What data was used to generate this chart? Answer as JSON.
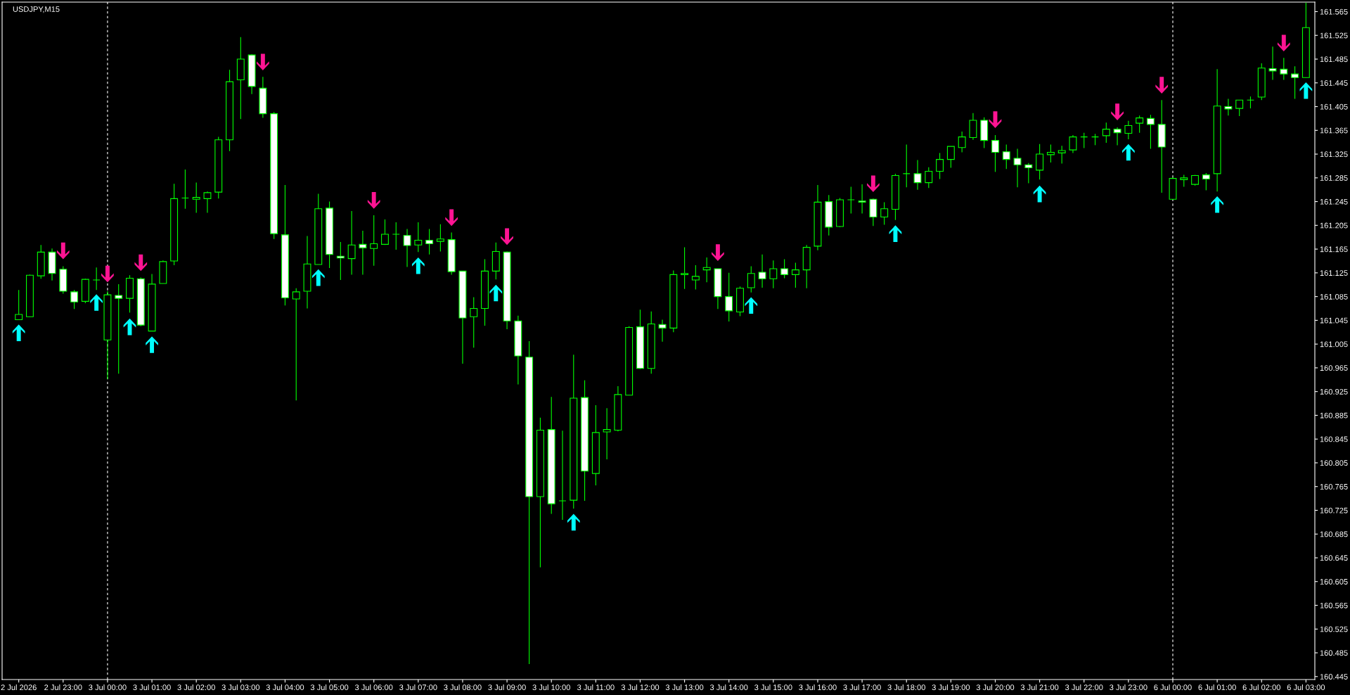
{
  "chart_data": {
    "type": "candlestick",
    "title": "USDJPY,M15",
    "categories": [
      "2 Jul 2026",
      null,
      null,
      null,
      "2 Jul 23:00",
      null,
      null,
      null,
      "3 Jul 00:00",
      null,
      null,
      null,
      "3 Jul 01:00",
      null,
      null,
      null,
      "3 Jul 02:00",
      null,
      null,
      null,
      "3 Jul 03:00",
      null,
      null,
      null,
      "3 Jul 04:00",
      null,
      null,
      null,
      "3 Jul 05:00",
      null,
      null,
      null,
      "3 Jul 06:00",
      null,
      null,
      null,
      "3 Jul 07:00",
      null,
      null,
      null,
      "3 Jul 08:00",
      null,
      null,
      null,
      "3 Jul 09:00",
      null,
      null,
      null,
      "3 Jul 10:00",
      null,
      null,
      null,
      "3 Jul 11:00",
      null,
      null,
      null,
      "3 Jul 12:00",
      null,
      null,
      null,
      "3 Jul 13:00",
      null,
      null,
      null,
      "3 Jul 14:00",
      null,
      null,
      null,
      "3 Jul 15:00",
      null,
      null,
      null,
      "3 Jul 16:00",
      null,
      null,
      null,
      "3 Jul 17:00",
      null,
      null,
      null,
      "3 Jul 18:00",
      null,
      null,
      null,
      "3 Jul 19:00",
      null,
      null,
      null,
      "3 Jul 20:00",
      null,
      null,
      null,
      "3 Jul 21:00",
      null,
      null,
      null,
      "3 Jul 22:00",
      null,
      null,
      null,
      "3 Jul 23:00",
      null,
      null,
      null,
      "6 Jul 00:00",
      null,
      null,
      null,
      "6 Jul 01:00",
      null,
      null,
      null,
      "6 Jul 02:00",
      null,
      null,
      null,
      "6 Jul 03:00"
    ],
    "ohlc": [
      [
        161.046,
        161.096,
        161.046,
        161.055
      ],
      [
        161.051,
        161.122,
        161.051,
        161.121
      ],
      [
        161.12,
        161.172,
        161.115,
        161.16
      ],
      [
        161.16,
        161.166,
        161.112,
        161.124
      ],
      [
        161.131,
        161.136,
        161.09,
        161.094
      ],
      [
        161.093,
        161.096,
        161.064,
        161.076
      ],
      [
        161.077,
        161.115,
        161.074,
        161.114
      ],
      [
        161.113,
        161.134,
        161.096,
        161.113
      ],
      [
        161.012,
        161.094,
        160.946,
        161.088
      ],
      [
        161.087,
        161.106,
        160.955,
        161.082
      ],
      [
        161.082,
        161.121,
        161.058,
        161.116
      ],
      [
        161.115,
        161.117,
        161.035,
        161.037
      ],
      [
        161.027,
        161.123,
        161.027,
        161.106
      ],
      [
        161.107,
        161.146,
        161.107,
        161.144
      ],
      [
        161.145,
        161.275,
        161.138,
        161.25
      ],
      [
        161.251,
        161.299,
        161.233,
        161.251
      ],
      [
        161.249,
        161.277,
        161.226,
        161.252
      ],
      [
        161.25,
        161.262,
        161.226,
        161.26
      ],
      [
        161.261,
        161.354,
        161.25,
        161.349
      ],
      [
        161.349,
        161.467,
        161.33,
        161.447
      ],
      [
        161.45,
        161.522,
        161.384,
        161.485
      ],
      [
        161.492,
        161.493,
        161.426,
        161.439
      ],
      [
        161.436,
        161.455,
        161.386,
        161.393
      ],
      [
        161.393,
        161.396,
        161.182,
        161.191
      ],
      [
        161.189,
        161.273,
        161.07,
        161.083
      ],
      [
        161.081,
        161.099,
        160.91,
        161.093
      ],
      [
        161.094,
        161.187,
        161.065,
        161.14
      ],
      [
        161.139,
        161.258,
        161.139,
        161.233
      ],
      [
        161.234,
        161.245,
        161.133,
        161.156
      ],
      [
        161.153,
        161.177,
        161.113,
        161.15
      ],
      [
        161.149,
        161.229,
        161.122,
        161.172
      ],
      [
        161.173,
        161.196,
        161.122,
        161.167
      ],
      [
        161.166,
        161.222,
        161.137,
        161.174
      ],
      [
        161.173,
        161.215,
        161.172,
        161.19
      ],
      [
        161.19,
        161.21,
        161.164,
        161.19
      ],
      [
        161.188,
        161.199,
        161.135,
        161.171
      ],
      [
        161.172,
        161.21,
        161.16,
        161.18
      ],
      [
        161.18,
        161.199,
        161.156,
        161.174
      ],
      [
        161.178,
        161.207,
        161.161,
        161.182
      ],
      [
        161.181,
        161.193,
        161.122,
        161.127
      ],
      [
        161.128,
        161.128,
        160.972,
        161.049
      ],
      [
        161.051,
        161.084,
        160.999,
        161.065
      ],
      [
        161.065,
        161.148,
        161.036,
        161.128
      ],
      [
        161.128,
        161.176,
        161.114,
        161.161
      ],
      [
        161.16,
        161.161,
        161.03,
        161.044
      ],
      [
        161.044,
        161.053,
        160.937,
        160.985
      ],
      [
        160.983,
        161.01,
        160.466,
        160.748
      ],
      [
        160.748,
        160.881,
        160.629,
        160.86
      ],
      [
        160.861,
        160.916,
        160.719,
        160.736
      ],
      [
        160.741,
        160.859,
        160.709,
        160.741
      ],
      [
        160.742,
        160.987,
        160.728,
        160.914
      ],
      [
        160.915,
        160.944,
        160.741,
        160.791
      ],
      [
        160.787,
        160.902,
        160.767,
        160.856
      ],
      [
        160.857,
        160.897,
        160.811,
        160.861
      ],
      [
        160.86,
        160.934,
        160.858,
        160.92
      ],
      [
        160.919,
        161.035,
        160.919,
        161.033
      ],
      [
        161.034,
        161.063,
        160.963,
        160.964
      ],
      [
        160.964,
        161.06,
        160.955,
        161.039
      ],
      [
        161.038,
        161.046,
        161.009,
        161.032
      ],
      [
        161.032,
        161.129,
        161.025,
        161.122
      ],
      [
        161.122,
        161.168,
        161.098,
        161.124
      ],
      [
        161.113,
        161.138,
        161.097,
        161.119
      ],
      [
        161.13,
        161.151,
        161.109,
        161.134
      ],
      [
        161.132,
        161.132,
        161.064,
        161.085
      ],
      [
        161.085,
        161.125,
        161.043,
        161.061
      ],
      [
        161.059,
        161.102,
        161.052,
        161.099
      ],
      [
        161.1,
        161.136,
        161.092,
        161.124
      ],
      [
        161.126,
        161.156,
        161.1,
        161.115
      ],
      [
        161.115,
        161.146,
        161.099,
        161.132
      ],
      [
        161.132,
        161.148,
        161.116,
        161.122
      ],
      [
        161.122,
        161.142,
        161.1,
        161.13
      ],
      [
        161.13,
        161.172,
        161.099,
        161.168
      ],
      [
        161.17,
        161.273,
        161.163,
        161.244
      ],
      [
        161.245,
        161.256,
        161.188,
        161.202
      ],
      [
        161.203,
        161.251,
        161.202,
        161.248
      ],
      [
        161.248,
        161.27,
        161.225,
        161.248
      ],
      [
        161.246,
        161.274,
        161.225,
        161.244
      ],
      [
        161.249,
        161.25,
        161.204,
        161.219
      ],
      [
        161.219,
        161.244,
        161.206,
        161.233
      ],
      [
        161.232,
        161.292,
        161.214,
        161.289
      ],
      [
        161.292,
        161.341,
        161.269,
        161.292
      ],
      [
        161.292,
        161.315,
        161.265,
        161.277
      ],
      [
        161.277,
        161.303,
        161.268,
        161.296
      ],
      [
        161.296,
        161.327,
        161.283,
        161.316
      ],
      [
        161.316,
        161.338,
        161.302,
        161.338
      ],
      [
        161.336,
        161.363,
        161.328,
        161.354
      ],
      [
        161.353,
        161.394,
        161.349,
        161.382
      ],
      [
        161.382,
        161.387,
        161.335,
        161.348
      ],
      [
        161.348,
        161.357,
        161.295,
        161.328
      ],
      [
        161.329,
        161.341,
        161.3,
        161.316
      ],
      [
        161.318,
        161.334,
        161.269,
        161.307
      ],
      [
        161.307,
        161.31,
        161.276,
        161.302
      ],
      [
        161.298,
        161.342,
        161.282,
        161.325
      ],
      [
        161.324,
        161.341,
        161.311,
        161.328
      ],
      [
        161.327,
        161.339,
        161.309,
        161.331
      ],
      [
        161.332,
        161.357,
        161.327,
        161.354
      ],
      [
        161.354,
        161.361,
        161.335,
        161.354
      ],
      [
        161.354,
        161.359,
        161.34,
        161.354
      ],
      [
        161.356,
        161.378,
        161.344,
        161.367
      ],
      [
        161.367,
        161.37,
        161.34,
        161.361
      ],
      [
        161.36,
        161.381,
        161.35,
        161.373
      ],
      [
        161.377,
        161.39,
        161.361,
        161.386
      ],
      [
        161.385,
        161.391,
        161.334,
        161.375
      ],
      [
        161.375,
        161.416,
        161.26,
        161.337
      ],
      [
        161.249,
        161.286,
        161.249,
        161.284
      ],
      [
        161.282,
        161.29,
        161.27,
        161.285
      ],
      [
        161.274,
        161.29,
        161.272,
        161.289
      ],
      [
        161.29,
        161.293,
        161.264,
        161.283
      ],
      [
        161.292,
        161.468,
        161.262,
        161.406
      ],
      [
        161.405,
        161.418,
        161.39,
        161.401
      ],
      [
        161.402,
        161.416,
        161.389,
        161.416
      ],
      [
        161.416,
        161.422,
        161.402,
        161.416
      ],
      [
        161.421,
        161.478,
        161.416,
        161.47
      ],
      [
        161.469,
        161.506,
        161.45,
        161.465
      ],
      [
        161.468,
        161.487,
        161.45,
        161.46
      ],
      [
        161.46,
        161.473,
        161.418,
        161.454
      ],
      [
        161.454,
        161.58,
        161.454,
        161.538
      ]
    ],
    "color": "#00ff00",
    "colors": [
      "#000000",
      "#000000",
      "#000000",
      "#ffffff",
      "#ffffff",
      "#ffffff",
      "#000000",
      "#00ff00",
      "#000000",
      "#ffffff",
      "#000000",
      "#ffffff",
      "#000000",
      "#000000",
      "#000000",
      "#00ff00",
      "#000000",
      "#000000",
      "#000000",
      "#000000",
      "#000000",
      "#ffffff",
      "#ffffff",
      "#ffffff",
      "#ffffff",
      "#000000",
      "#000000",
      "#000000",
      "#ffffff",
      "#ffffff",
      "#000000",
      "#ffffff",
      "#000000",
      "#000000",
      "#00ff00",
      "#ffffff",
      "#000000",
      "#ffffff",
      "#000000",
      "#ffffff",
      "#ffffff",
      "#000000",
      "#000000",
      "#000000",
      "#ffffff",
      "#ffffff",
      "#ffffff",
      "#000000",
      "#ffffff",
      "#00ff00",
      "#000000",
      "#ffffff",
      "#000000",
      "#000000",
      "#000000",
      "#000000",
      "#ffffff",
      "#000000",
      "#ffffff",
      "#000000",
      "#000000",
      "#000000",
      "#000000",
      "#ffffff",
      "#ffffff",
      "#000000",
      "#000000",
      "#ffffff",
      "#000000",
      "#ffffff",
      "#000000",
      "#000000",
      "#000000",
      "#ffffff",
      "#000000",
      "#00ff00",
      "#ffffff",
      "#ffffff",
      "#000000",
      "#000000",
      "#00ff00",
      "#ffffff",
      "#000000",
      "#000000",
      "#000000",
      "#000000",
      "#000000",
      "#ffffff",
      "#ffffff",
      "#ffffff",
      "#ffffff",
      "#ffffff",
      "#000000",
      "#000000",
      "#000000",
      "#000000",
      "#00ff00",
      "#00ff00",
      "#000000",
      "#ffffff",
      "#000000",
      "#000000",
      "#ffffff",
      "#ffffff",
      "#000000",
      "#000000",
      "#000000",
      "#ffffff",
      "#000000",
      "#ffffff",
      "#000000",
      "#00ff00",
      "#000000",
      "#ffffff",
      "#ffffff",
      "#ffffff",
      "#000000"
    ],
    "series": [
      {
        "type": "scatter",
        "color": "#00ffff",
        "values": [
          161.024,
          null,
          null,
          null,
          null,
          null,
          null,
          161.075,
          null,
          null,
          161.034,
          null,
          161.004,
          null,
          null,
          null,
          null,
          null,
          null,
          null,
          null,
          null,
          null,
          null,
          null,
          null,
          null,
          161.117,
          null,
          null,
          null,
          null,
          null,
          null,
          null,
          null,
          161.137,
          null,
          null,
          null,
          null,
          null,
          null,
          161.091,
          null,
          null,
          null,
          null,
          null,
          null,
          160.705,
          null,
          null,
          null,
          null,
          null,
          null,
          null,
          null,
          null,
          null,
          null,
          null,
          null,
          null,
          null,
          161.07,
          null,
          null,
          null,
          null,
          null,
          null,
          null,
          null,
          null,
          null,
          null,
          null,
          161.191,
          null,
          null,
          null,
          null,
          null,
          null,
          null,
          null,
          null,
          null,
          null,
          null,
          161.258,
          null,
          null,
          null,
          null,
          null,
          null,
          null,
          161.328,
          null,
          null,
          null,
          null,
          null,
          null,
          null,
          161.24,
          null,
          null,
          null,
          null,
          null,
          null,
          null,
          161.432
        ]
      },
      {
        "type": "scatter",
        "color": "#ff1493",
        "values": [
          null,
          null,
          null,
          null,
          161.162,
          null,
          null,
          null,
          161.123,
          null,
          null,
          161.142,
          null,
          null,
          null,
          null,
          null,
          null,
          null,
          null,
          null,
          null,
          161.48,
          null,
          null,
          null,
          null,
          null,
          null,
          null,
          null,
          null,
          161.247,
          null,
          null,
          null,
          null,
          null,
          null,
          161.218,
          null,
          null,
          null,
          null,
          161.186,
          null,
          null,
          null,
          null,
          null,
          null,
          null,
          null,
          null,
          null,
          null,
          null,
          null,
          null,
          null,
          null,
          null,
          null,
          161.159,
          null,
          null,
          null,
          null,
          null,
          null,
          null,
          null,
          null,
          null,
          null,
          null,
          null,
          161.275,
          null,
          null,
          null,
          null,
          null,
          null,
          null,
          null,
          null,
          null,
          161.383,
          null,
          null,
          null,
          null,
          null,
          null,
          null,
          null,
          null,
          null,
          161.396,
          null,
          null,
          null,
          161.441,
          null,
          null,
          null,
          null,
          null,
          null,
          null,
          null,
          null,
          null,
          161.512,
          null,
          null
        ]
      }
    ],
    "ref_lines": [
      {
        "axis": "x",
        "value": "3 Jul 00:00",
        "color": "#ffffff",
        "line_style": "dashed"
      },
      {
        "axis": "x",
        "value": "6 Jul 00:00",
        "color": "#ffffff",
        "line_style": "dashed"
      }
    ],
    "ylim": [
      160.44,
      161.581
    ],
    "yticks": [
      160.445,
      160.485,
      160.525,
      160.565,
      160.605,
      160.645,
      160.685,
      160.725,
      160.765,
      160.805,
      160.845,
      160.885,
      160.925,
      160.965,
      161.005,
      161.045,
      161.085,
      161.125,
      161.165,
      161.205,
      161.245,
      161.285,
      161.325,
      161.365,
      161.405,
      161.445,
      161.485,
      161.525,
      161.565
    ]
  }
}
